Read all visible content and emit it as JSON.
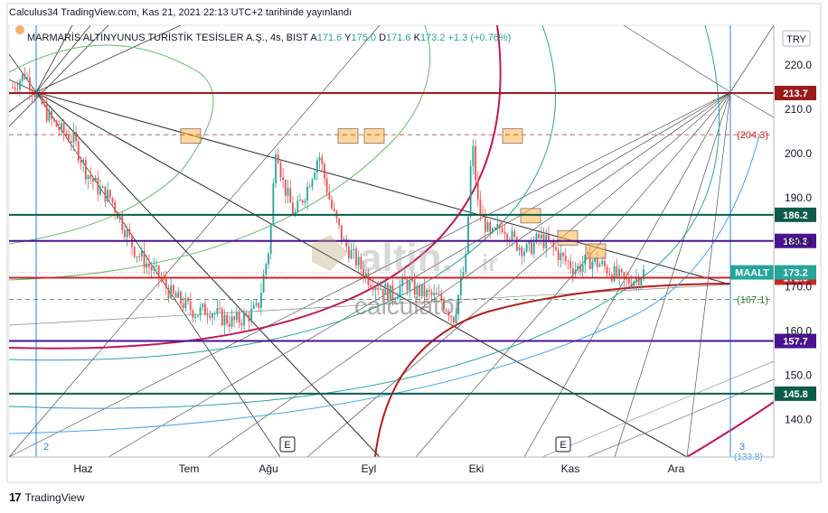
{
  "header": {
    "published": "Calculus34 TradingView.com, Kas 21, 2021 22:13 UTC+2 tarihinde yayınlandı"
  },
  "chart_data": {
    "type": "candlestick",
    "legend": {
      "symbol": "MARMARİS ALTINYUNUS TURİSTİK TESİSLER A.Ş., 4s, BIST",
      "open_label": "A",
      "open": "171.6",
      "high_label": "Y",
      "high": "175.0",
      "low_label": "D",
      "low": "171.6",
      "close_label": "K",
      "close": "173.2",
      "change": "+1.3 (+0.76%)"
    },
    "currency": "TRY",
    "ylim": [
      131.5,
      229
    ],
    "x_ticks": [
      "Haz",
      "Tem",
      "Ağu",
      "Eyl",
      "Eki",
      "Kas",
      "Ara"
    ],
    "y_ticks": [
      140,
      150,
      160,
      170,
      180,
      190,
      200,
      210,
      220
    ],
    "price_lines": [
      {
        "value": 213.7,
        "label": "213.7",
        "color": "#9a1b1b"
      },
      {
        "value": 186.2,
        "label": "186.2",
        "color": "#0d5c4b"
      },
      {
        "value": 180.3,
        "label": "180.3",
        "color": "#4a148c"
      },
      {
        "value": 172.0,
        "label": "172.0",
        "color": "#c62828"
      },
      {
        "value": 157.7,
        "label": "157.7",
        "color": "#4a148c"
      },
      {
        "value": 145.8,
        "label": "145.8",
        "color": "#0d5c4b"
      }
    ],
    "dashed_levels": [
      {
        "value": 204.3,
        "label": "(204.3)",
        "color": "#c62828"
      },
      {
        "value": 167.1,
        "label": "(167.1)",
        "color": "#2e7d32"
      }
    ],
    "last_price": {
      "name": "MAALT",
      "value": "173.2",
      "color": "#26a69a"
    },
    "event_markers": [
      "E",
      "E"
    ],
    "vertical_labels": [
      "2",
      "3"
    ],
    "hidden_label": "(133.8)",
    "price_path": [
      [
        0,
        215
      ],
      [
        2,
        218
      ],
      [
        4,
        213
      ],
      [
        6,
        208
      ],
      [
        8,
        205
      ],
      [
        10,
        203
      ],
      [
        12,
        196
      ],
      [
        14,
        192
      ],
      [
        16,
        190
      ],
      [
        18,
        184
      ],
      [
        20,
        178
      ],
      [
        22,
        175
      ],
      [
        24,
        172
      ],
      [
        26,
        168
      ],
      [
        28,
        166
      ],
      [
        30,
        164
      ],
      [
        32,
        165
      ],
      [
        34,
        163
      ],
      [
        36,
        162
      ],
      [
        38,
        163
      ],
      [
        40,
        165
      ],
      [
        42,
        180
      ],
      [
        43,
        203
      ],
      [
        44,
        194
      ],
      [
        46,
        186
      ],
      [
        48,
        192
      ],
      [
        50,
        200
      ],
      [
        52,
        188
      ],
      [
        54,
        180
      ],
      [
        56,
        176
      ],
      [
        58,
        172
      ],
      [
        60,
        170
      ],
      [
        62,
        168
      ],
      [
        64,
        171
      ],
      [
        66,
        169
      ],
      [
        68,
        168
      ],
      [
        70,
        167
      ],
      [
        72,
        163
      ],
      [
        74,
        176
      ],
      [
        75,
        203
      ],
      [
        76,
        188
      ],
      [
        78,
        181
      ],
      [
        80,
        184
      ],
      [
        82,
        180
      ],
      [
        84,
        178
      ],
      [
        86,
        181
      ],
      [
        88,
        179
      ],
      [
        90,
        176
      ],
      [
        92,
        174
      ],
      [
        94,
        176
      ],
      [
        96,
        175
      ],
      [
        98,
        173
      ],
      [
        100,
        171
      ],
      [
        102,
        172
      ],
      [
        103,
        173.2
      ]
    ]
  },
  "watermark": {
    "brand": "altin.",
    "brand_suffix": "ir",
    "sub": "calculator"
  },
  "footer": {
    "brand": "TradingView"
  }
}
